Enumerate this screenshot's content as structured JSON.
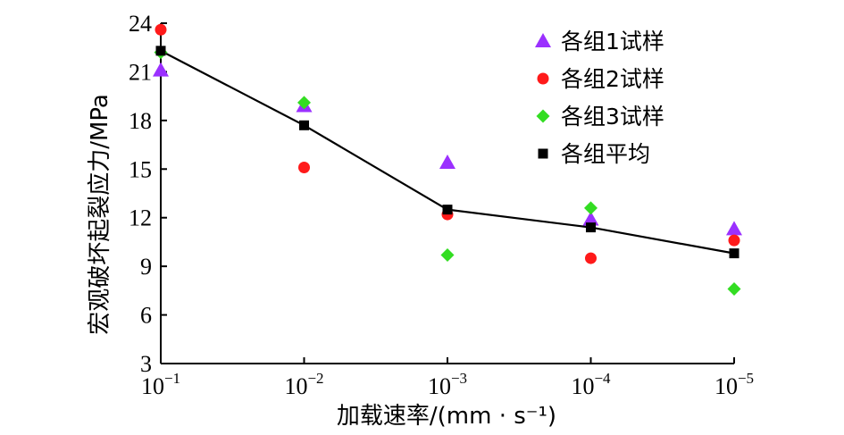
{
  "chart_data": {
    "type": "scatter",
    "title": "",
    "xlabel": "加载速率/(mm · s⁻¹)",
    "ylabel": "宏观破坏起裂应力/MPa",
    "x_ticks": [
      {
        "base": "10",
        "exp": "−1"
      },
      {
        "base": "10",
        "exp": "−2"
      },
      {
        "base": "10",
        "exp": "−3"
      },
      {
        "base": "10",
        "exp": "−4"
      },
      {
        "base": "10",
        "exp": "−5"
      }
    ],
    "x": [
      0.1,
      0.01,
      0.001,
      0.0001,
      1e-05
    ],
    "x_scale": "log (reversed)",
    "y_ticks": [
      "3",
      "6",
      "9",
      "12",
      "15",
      "18",
      "21",
      "24"
    ],
    "ylim": [
      3,
      24
    ],
    "grid": false,
    "legend_position": "top-right",
    "series": [
      {
        "name": "各组1试样",
        "marker": "triangle",
        "color": "#9b30ff",
        "values": [
          21.1,
          18.9,
          15.4,
          11.9,
          11.3
        ]
      },
      {
        "name": "各组2试样",
        "marker": "circle",
        "color": "#ff1a1a",
        "values": [
          23.6,
          15.1,
          12.2,
          9.5,
          10.6
        ]
      },
      {
        "name": "各组3试样",
        "marker": "diamond",
        "color": "#33dd22",
        "values": [
          22.2,
          19.1,
          9.7,
          12.6,
          7.6
        ]
      },
      {
        "name": "各组平均",
        "marker": "square",
        "color": "#000000",
        "line": true,
        "values": [
          22.3,
          17.7,
          12.5,
          11.4,
          9.8
        ]
      }
    ]
  }
}
